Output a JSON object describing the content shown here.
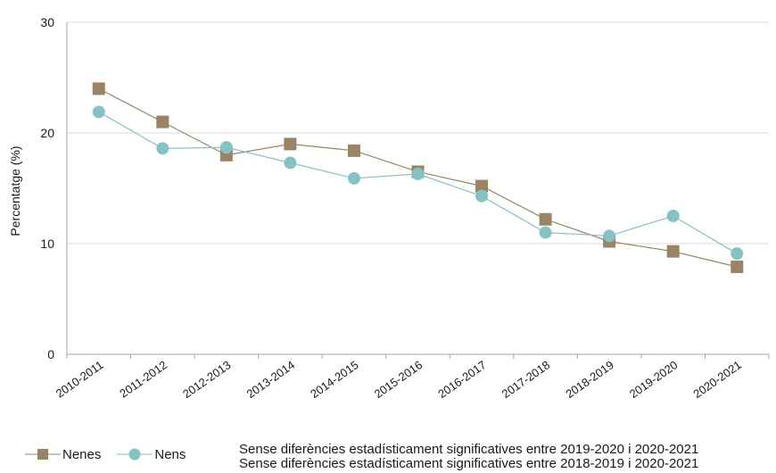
{
  "chart_data": {
    "type": "line",
    "categories": [
      "2010-2011",
      "2011-2012",
      "2012-2013",
      "2013-2014",
      "2014-2015",
      "2015-2016",
      "2016-2017",
      "2017-2018",
      "2018-2019",
      "2019-2020",
      "2020-2021"
    ],
    "series": [
      {
        "name": "Nenes",
        "marker": "square",
        "color": "#9b8466",
        "values": [
          24.0,
          21.0,
          18.0,
          19.0,
          18.4,
          16.5,
          15.2,
          12.2,
          10.2,
          9.3,
          7.9
        ]
      },
      {
        "name": "Nens",
        "marker": "circle",
        "color": "#86c2c4",
        "values": [
          21.9,
          18.6,
          18.7,
          17.3,
          15.9,
          16.3,
          14.3,
          11.0,
          10.7,
          12.5,
          9.1
        ]
      }
    ],
    "ylabel": "Percentatge (%)",
    "ylim": [
      0,
      30
    ],
    "yticks": [
      "0",
      "10",
      "20",
      "30"
    ],
    "grid": true,
    "legend_position": "bottom-left"
  },
  "notes": [
    "Sense diferències estadísticament significatives entre 2019-2020 i 2020-2021",
    "Sense diferències estadísticament significatives entre 2018-2019 i 2020-2021"
  ]
}
